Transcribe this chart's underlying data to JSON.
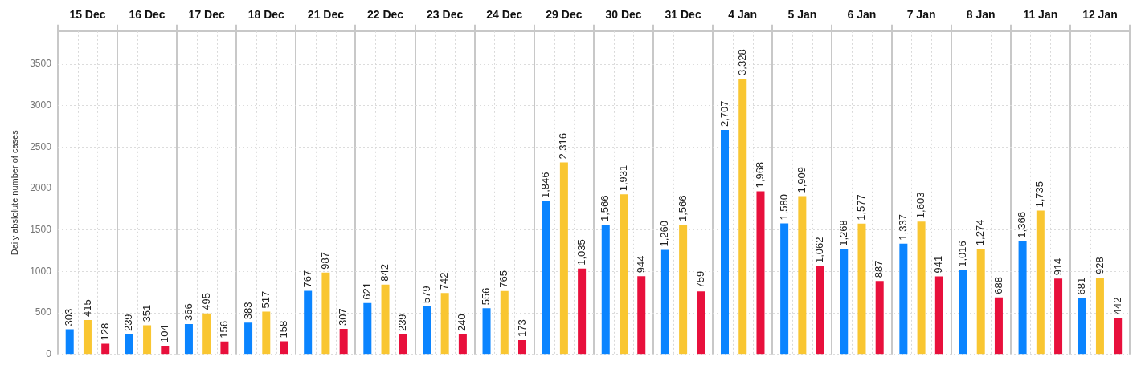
{
  "chart_data": {
    "type": "bar",
    "ylabel": "Daily abslolute number of cases",
    "categories": [
      "15 Dec",
      "16 Dec",
      "17 Dec",
      "18 Dec",
      "21 Dec",
      "22 Dec",
      "23 Dec",
      "24 Dec",
      "29 Dec",
      "30 Dec",
      "31 Dec",
      "4 Jan",
      "5 Jan",
      "6 Jan",
      "7 Jan",
      "8 Jan",
      "11 Jan",
      "12 Jan"
    ],
    "series": [
      {
        "color": "#0a84ff",
        "values": [
          303,
          239,
          366,
          383,
          767,
          621,
          579,
          556,
          1846,
          1566,
          1260,
          2707,
          1580,
          1268,
          1337,
          1016,
          1366,
          681
        ],
        "value_labels": [
          "303",
          "239",
          "366",
          "383",
          "767",
          "621",
          "579",
          "556",
          "1,846",
          "1,566",
          "1,260",
          "2,707",
          "1,580",
          "1,268",
          "1,337",
          "1,016",
          "1,366",
          "681"
        ]
      },
      {
        "color": "#f9c631",
        "values": [
          415,
          351,
          495,
          517,
          987,
          842,
          742,
          765,
          2316,
          1931,
          1566,
          3328,
          1909,
          1577,
          1603,
          1274,
          1735,
          928
        ],
        "value_labels": [
          "415",
          "351",
          "495",
          "517",
          "987",
          "842",
          "742",
          "765",
          "2,316",
          "1,931",
          "1,566",
          "3,328",
          "1,909",
          "1,577",
          "1,603",
          "1,274",
          "1,735",
          "928"
        ]
      },
      {
        "color": "#e8103c",
        "values": [
          128,
          104,
          156,
          158,
          307,
          239,
          240,
          173,
          1035,
          944,
          759,
          1968,
          1062,
          887,
          941,
          688,
          914,
          442
        ],
        "value_labels": [
          "128",
          "104",
          "156",
          "158",
          "307",
          "239",
          "240",
          "173",
          "1,035",
          "944",
          "759",
          "1,968",
          "1,062",
          "887",
          "941",
          "688",
          "914",
          "442"
        ]
      }
    ],
    "ylim": [
      0,
      3900
    ],
    "yticks": [
      0,
      500,
      1000,
      1500,
      2000,
      2500,
      3000,
      3500
    ],
    "grid": true
  }
}
